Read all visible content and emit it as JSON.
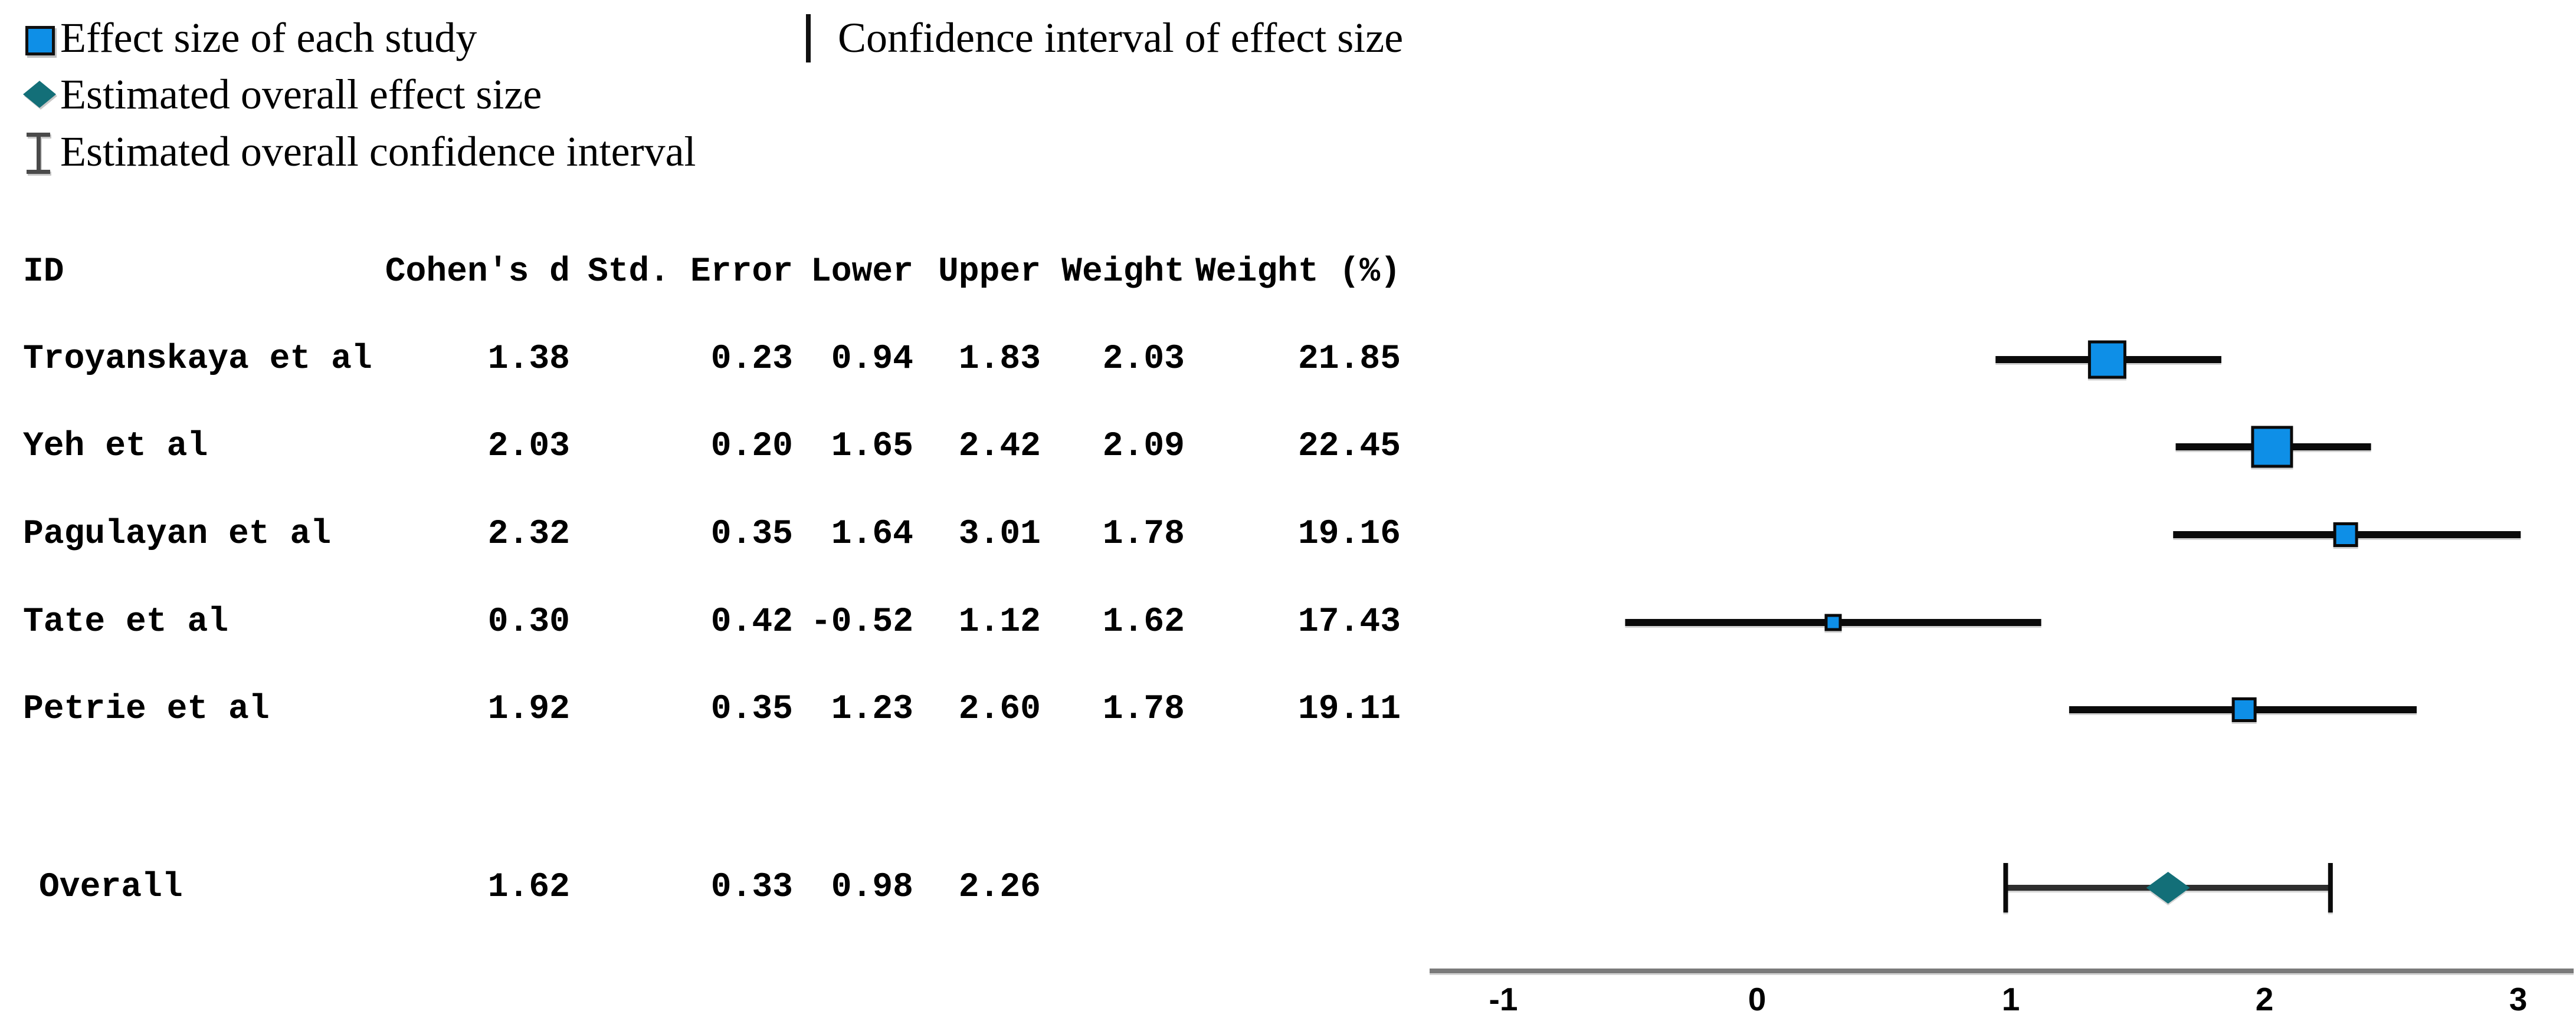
{
  "figure": {
    "kind": "forest plot (meta-analysis)"
  },
  "colors": {
    "study_marker_fill": "#0E8FE7",
    "overall_marker_fill": "#136F78",
    "study_ci_line": "#0a0a0a",
    "overall_ci_line": "#2e2e2e",
    "axis_line": "#7a7a7a",
    "text": "#000000"
  },
  "legend": {
    "items": [
      {
        "icon": "blue-square",
        "label": "Effect size of each study"
      },
      {
        "icon": "vertical-bar",
        "label": "Confidence interval of effect size"
      },
      {
        "icon": "teal-diamond",
        "label": "Estimated overall effect size"
      },
      {
        "icon": "i-beam",
        "label": "Estimated overall confidence interval"
      }
    ]
  },
  "table": {
    "headers": [
      "ID",
      "Cohen's d",
      "Std. Error",
      "Lower",
      "Upper",
      "Weight",
      "Weight (%)"
    ],
    "rows": [
      {
        "id": "Troyanskaya et al",
        "cohens_d": "1.38",
        "std_error": "0.23",
        "lower": "0.94",
        "upper": "1.83",
        "weight": "2.03",
        "weight_pct": "21.85"
      },
      {
        "id": "Yeh et al",
        "cohens_d": "2.03",
        "std_error": "0.20",
        "lower": "1.65",
        "upper": "2.42",
        "weight": "2.09",
        "weight_pct": "22.45"
      },
      {
        "id": "Pagulayan et al",
        "cohens_d": "2.32",
        "std_error": "0.35",
        "lower": "1.64",
        "upper": "3.01",
        "weight": "1.78",
        "weight_pct": "19.16"
      },
      {
        "id": "Tate et al",
        "cohens_d": "0.30",
        "std_error": "0.42",
        "lower": "-0.52",
        "upper": "1.12",
        "weight": "1.62",
        "weight_pct": "17.43"
      },
      {
        "id": "Petrie et al",
        "cohens_d": "1.92",
        "std_error": "0.35",
        "lower": "1.23",
        "upper": "2.60",
        "weight": "1.78",
        "weight_pct": "19.11"
      }
    ],
    "overall_row": {
      "id": "Overall",
      "cohens_d": "1.62",
      "std_error": "0.33",
      "lower": "0.98",
      "upper": "2.26"
    }
  },
  "chart_data": {
    "type": "forest",
    "xlim": [
      -1,
      3
    ],
    "xticks": [
      -1,
      0,
      1,
      2,
      3
    ],
    "xtick_labels": [
      "-1",
      "0",
      "1",
      "2",
      "3"
    ],
    "grid": false,
    "studies": [
      {
        "id": "Troyanskaya et al",
        "est": 1.38,
        "lower": 0.94,
        "upper": 1.83,
        "weight": 2.03,
        "weight_pct": 21.85,
        "marker_px": 60
      },
      {
        "id": "Yeh et al",
        "est": 2.03,
        "lower": 1.65,
        "upper": 2.42,
        "weight": 2.09,
        "weight_pct": 22.45,
        "marker_px": 66
      },
      {
        "id": "Pagulayan et al",
        "est": 2.32,
        "lower": 1.64,
        "upper": 3.01,
        "weight": 1.78,
        "weight_pct": 19.16,
        "marker_px": 37
      },
      {
        "id": "Tate et al",
        "est": 0.3,
        "lower": -0.52,
        "upper": 1.12,
        "weight": 1.62,
        "weight_pct": 17.43,
        "marker_px": 24
      },
      {
        "id": "Petrie et al",
        "est": 1.92,
        "lower": 1.23,
        "upper": 2.6,
        "weight": 1.78,
        "weight_pct": 19.11,
        "marker_px": 37
      }
    ],
    "overall": {
      "id": "Overall",
      "est": 1.62,
      "lower": 0.98,
      "upper": 2.26
    }
  }
}
